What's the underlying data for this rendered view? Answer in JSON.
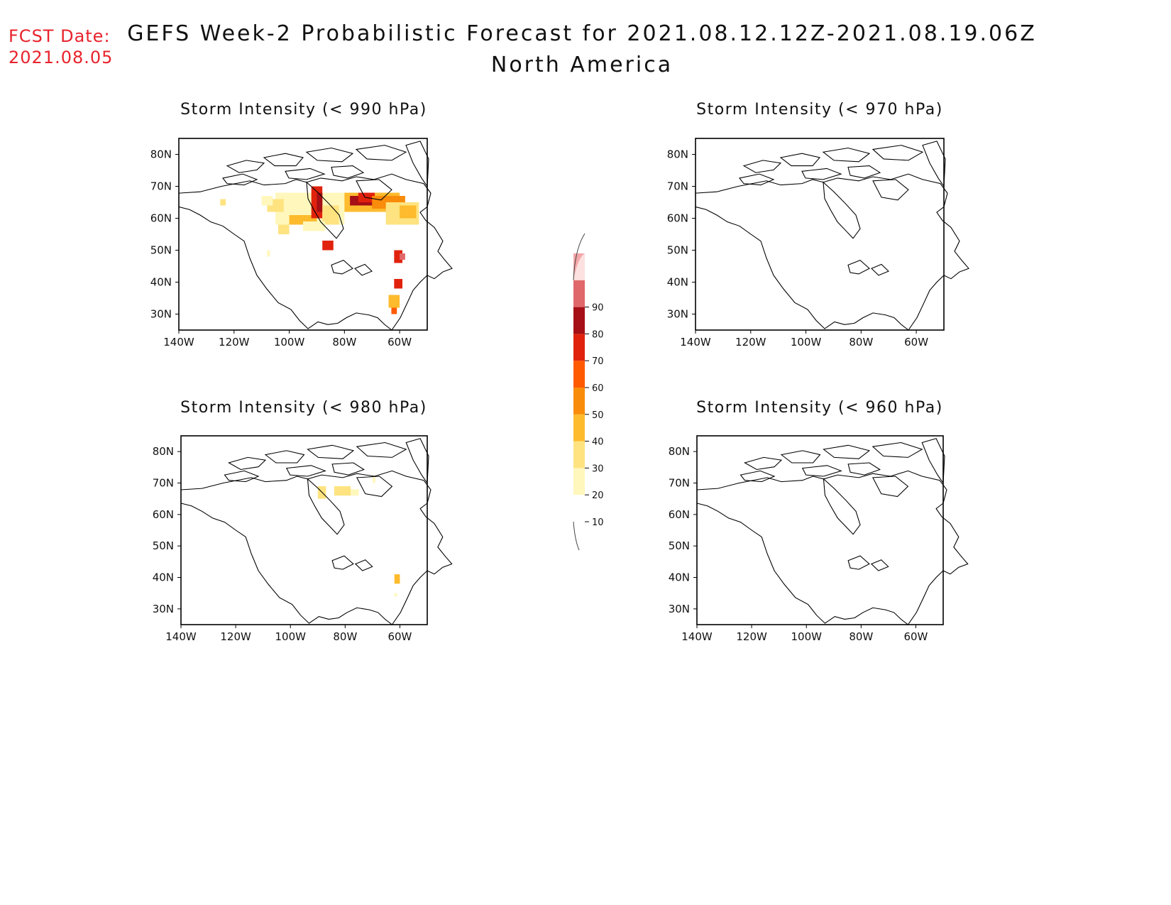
{
  "fcst": {
    "label": "FCST Date:",
    "date": "2021.08.05"
  },
  "title": {
    "line1": "GEFS Week-2 Probabilistic Forecast for 2021.08.12.12Z-2021.08.19.06Z",
    "line2": "North America"
  },
  "colors": {
    "frame": "#000000",
    "coast": "#000000",
    "levels": [
      "#fff7bc",
      "#fee380",
      "#fdbb2d",
      "#f98c0a",
      "#ff5a00",
      "#e0220d",
      "#a50f15",
      "#e0676a",
      "#f4a6a8",
      "#fde0e0"
    ]
  },
  "axes": {
    "lon_ticks": [
      "140W",
      "120W",
      "100W",
      "80W",
      "60W"
    ],
    "lat_ticks": [
      "80N",
      "70N",
      "60N",
      "50N",
      "40N",
      "30N"
    ]
  },
  "panels": [
    {
      "id": "p990",
      "title": "Storm Intensity (< 990 hPa)",
      "has_probabilities": true
    },
    {
      "id": "p970",
      "title": "Storm Intensity (< 970 hPa)",
      "has_probabilities": false
    },
    {
      "id": "p980",
      "title": "Storm Intensity (< 980 hPa)",
      "has_probabilities": true
    },
    {
      "id": "p960",
      "title": "Storm Intensity (< 960 hPa)",
      "has_probabilities": false
    }
  ],
  "colorbar": {
    "labels": [
      "10",
      "20",
      "30",
      "40",
      "50",
      "60",
      "70",
      "80",
      "90"
    ]
  }
}
